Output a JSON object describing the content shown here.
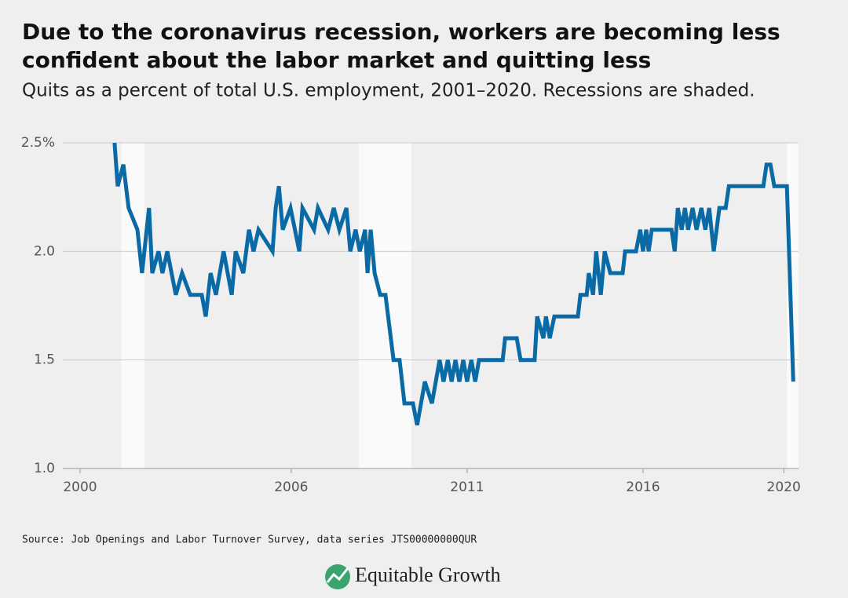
{
  "chart_data": {
    "type": "line",
    "title": [
      "Due to the coronavirus recession, workers are becoming less",
      "confident about the labor market and quitting less"
    ],
    "subtitle": "Quits as a percent of total U.S. employment, 2001–2020. Recessions are shaded.",
    "source": "Source: Job Openings and Labor Turnover Survey, data series JTS00000000QUR",
    "logo": "Equitable Growth",
    "x": [
      2000.98,
      2001.07,
      2001.23,
      2001.38,
      2001.63,
      2001.76,
      2001.96,
      2002.05,
      2002.23,
      2002.34,
      2002.48,
      2002.72,
      2002.9,
      2003.13,
      2003.46,
      2003.57,
      2003.71,
      2003.86,
      2003.97,
      2004.08,
      2004.31,
      2004.42,
      2004.64,
      2004.8,
      2004.93,
      2005.07,
      2005.47,
      2005.56,
      2005.65,
      2005.76,
      2005.98,
      2006.23,
      2006.32,
      2006.65,
      2006.76,
      2007.05,
      2007.21,
      2007.37,
      2007.57,
      2007.68,
      2007.83,
      2007.95,
      2008.1,
      2008.17,
      2008.26,
      2008.37,
      2008.53,
      2008.68,
      2008.91,
      2009.08,
      2009.22,
      2009.46,
      2009.58,
      2009.69,
      2009.8,
      2010.0,
      2010.11,
      2010.22,
      2010.33,
      2010.45,
      2010.56,
      2010.67,
      2010.78,
      2010.89,
      2011.0,
      2011.12,
      2011.23,
      2011.34,
      2012.01,
      2012.08,
      2012.41,
      2012.52,
      2012.92,
      2012.99,
      2013.17,
      2013.24,
      2013.35,
      2013.48,
      2014.15,
      2014.22,
      2014.4,
      2014.46,
      2014.58,
      2014.67,
      2014.8,
      2014.91,
      2015.07,
      2015.42,
      2015.49,
      2015.8,
      2015.92,
      2016.0,
      2016.09,
      2016.16,
      2016.25,
      2016.81,
      2016.9,
      2016.99,
      2017.1,
      2017.19,
      2017.28,
      2017.41,
      2017.52,
      2017.66,
      2017.77,
      2017.88,
      2018.01,
      2018.17,
      2018.35,
      2018.44,
      2019.42,
      2019.51,
      2019.62,
      2019.73,
      2020.09,
      2020.27
    ],
    "series": [
      {
        "color": "#0a6aa6",
        "values": [
          2.5,
          2.3,
          2.4,
          2.2,
          2.1,
          1.9,
          2.2,
          1.9,
          2.0,
          1.9,
          2.0,
          1.8,
          1.9,
          1.8,
          1.8,
          1.7,
          1.9,
          1.8,
          1.9,
          2.0,
          1.8,
          2.0,
          1.9,
          2.1,
          2.0,
          2.1,
          2.0,
          2.2,
          2.3,
          2.1,
          2.2,
          2.0,
          2.2,
          2.1,
          2.2,
          2.1,
          2.2,
          2.1,
          2.2,
          2.0,
          2.1,
          2.0,
          2.1,
          1.9,
          2.1,
          1.9,
          1.8,
          1.8,
          1.5,
          1.5,
          1.3,
          1.3,
          1.2,
          1.3,
          1.4,
          1.3,
          1.4,
          1.5,
          1.4,
          1.5,
          1.4,
          1.5,
          1.4,
          1.5,
          1.4,
          1.5,
          1.4,
          1.5,
          1.5,
          1.6,
          1.6,
          1.5,
          1.5,
          1.7,
          1.6,
          1.7,
          1.6,
          1.7,
          1.7,
          1.8,
          1.8,
          1.9,
          1.8,
          2.0,
          1.8,
          2.0,
          1.9,
          1.9,
          2.0,
          2.0,
          2.1,
          2.0,
          2.1,
          2.0,
          2.1,
          2.1,
          2.0,
          2.2,
          2.1,
          2.2,
          2.1,
          2.2,
          2.1,
          2.2,
          2.1,
          2.2,
          2.0,
          2.2,
          2.2,
          2.3,
          2.3,
          2.4,
          2.4,
          2.3,
          2.3,
          1.4
        ]
      }
    ],
    "recessions": [
      [
        2001.17,
        2001.83
      ],
      [
        2007.92,
        2009.42
      ],
      [
        2020.09,
        2020.42
      ]
    ],
    "xlim": [
      2000,
      2020.42
    ],
    "xticks": [
      2000,
      2006,
      2011,
      2016,
      2020
    ],
    "ylim": [
      1,
      2.5
    ],
    "yticks": [
      {
        "value": 1,
        "label": "1.0"
      },
      1.5,
      {
        "value": 2,
        "label": "2.0"
      },
      {
        "value": 2.5,
        "label": "2.5%"
      }
    ],
    "grid": true
  }
}
